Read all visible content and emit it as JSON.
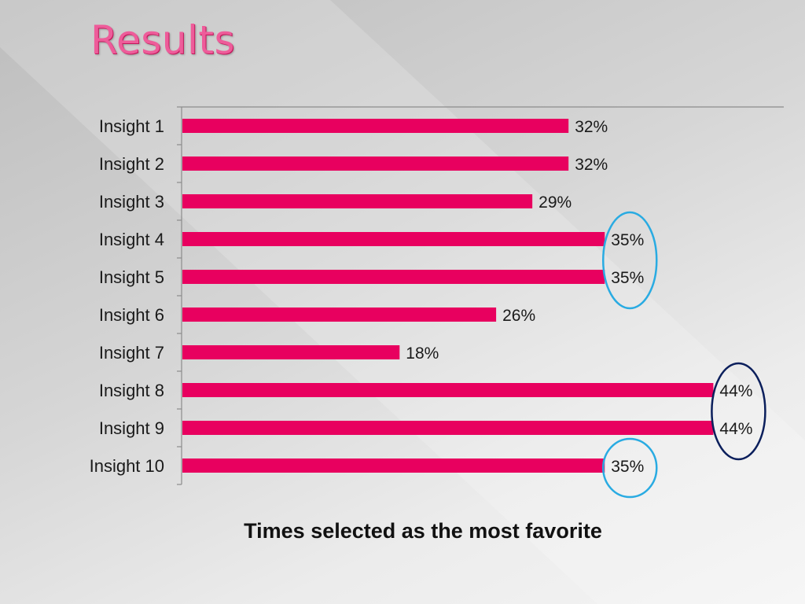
{
  "slide": {
    "title": "Results"
  },
  "chart_data": {
    "type": "bar",
    "orientation": "horizontal",
    "categories": [
      "Insight 1",
      "Insight 2",
      "Insight 3",
      "Insight 4",
      "Insight 5",
      "Insight 6",
      "Insight 7",
      "Insight 8",
      "Insight 9",
      "Insight 10"
    ],
    "values": [
      32,
      32,
      29,
      35,
      35,
      26,
      18,
      44,
      44,
      35
    ],
    "data_labels": [
      "32%",
      "32%",
      "29%",
      "35%",
      "35%",
      "26%",
      "18%",
      "44%",
      "44%",
      "35%"
    ],
    "xlabel": "Times selected as the most favorite",
    "xlim": [
      0,
      50
    ],
    "bar_color": "#e8005f",
    "grid": false,
    "annotations": [
      {
        "type": "ellipse",
        "around_categories": [
          "Insight 4",
          "Insight 5"
        ],
        "color": "#29abe2"
      },
      {
        "type": "ellipse",
        "around_categories": [
          "Insight 8",
          "Insight 9"
        ],
        "color": "#0b1f5c"
      },
      {
        "type": "ellipse",
        "around_categories": [
          "Insight 10"
        ],
        "color": "#29abe2"
      }
    ]
  }
}
